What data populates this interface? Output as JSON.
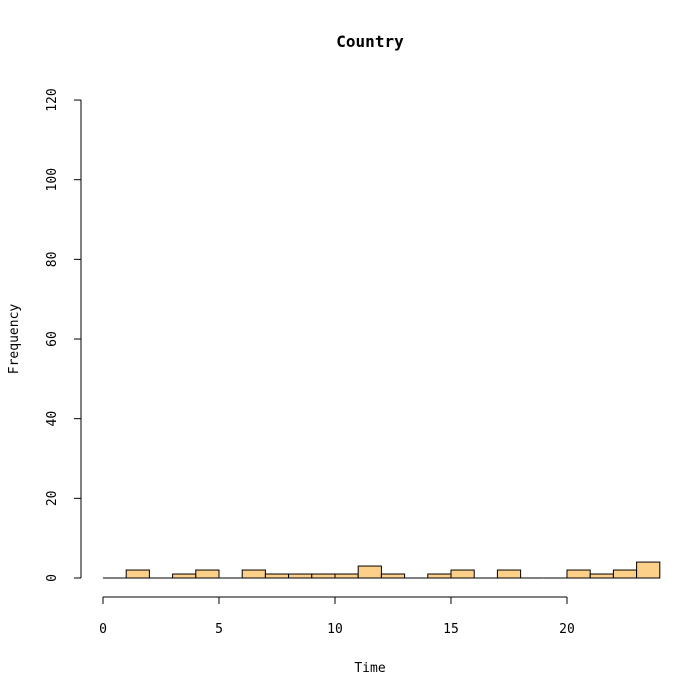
{
  "chart_data": {
    "type": "bar",
    "title": "Country",
    "xlabel": "Time",
    "ylabel": "Frequency",
    "xlim": [
      0,
      24
    ],
    "ylim": [
      0,
      120
    ],
    "x_ticks": [
      "0",
      "5",
      "10",
      "15",
      "20"
    ],
    "y_ticks": [
      "0",
      "20",
      "40",
      "60",
      "80",
      "100",
      "120"
    ],
    "bin_width": 1,
    "bins": [
      {
        "x0": 0,
        "x1": 1,
        "value": 0
      },
      {
        "x0": 1,
        "x1": 2,
        "value": 2
      },
      {
        "x0": 2,
        "x1": 3,
        "value": 0
      },
      {
        "x0": 3,
        "x1": 4,
        "value": 1
      },
      {
        "x0": 4,
        "x1": 5,
        "value": 2
      },
      {
        "x0": 5,
        "x1": 6,
        "value": 0
      },
      {
        "x0": 6,
        "x1": 7,
        "value": 2
      },
      {
        "x0": 7,
        "x1": 8,
        "value": 1
      },
      {
        "x0": 8,
        "x1": 9,
        "value": 1
      },
      {
        "x0": 9,
        "x1": 10,
        "value": 1
      },
      {
        "x0": 10,
        "x1": 11,
        "value": 1
      },
      {
        "x0": 11,
        "x1": 12,
        "value": 3
      },
      {
        "x0": 12,
        "x1": 13,
        "value": 1
      },
      {
        "x0": 13,
        "x1": 14,
        "value": 0
      },
      {
        "x0": 14,
        "x1": 15,
        "value": 1
      },
      {
        "x0": 15,
        "x1": 16,
        "value": 2
      },
      {
        "x0": 16,
        "x1": 17,
        "value": 0
      },
      {
        "x0": 17,
        "x1": 18,
        "value": 2
      },
      {
        "x0": 18,
        "x1": 19,
        "value": 0
      },
      {
        "x0": 19,
        "x1": 20,
        "value": 0
      },
      {
        "x0": 20,
        "x1": 21,
        "value": 2
      },
      {
        "x0": 21,
        "x1": 22,
        "value": 1
      },
      {
        "x0": 22,
        "x1": 23,
        "value": 2
      },
      {
        "x0": 23,
        "x1": 24,
        "value": 4
      }
    ],
    "bar_color": "#fdd08a",
    "grid": false,
    "legend": "none"
  }
}
